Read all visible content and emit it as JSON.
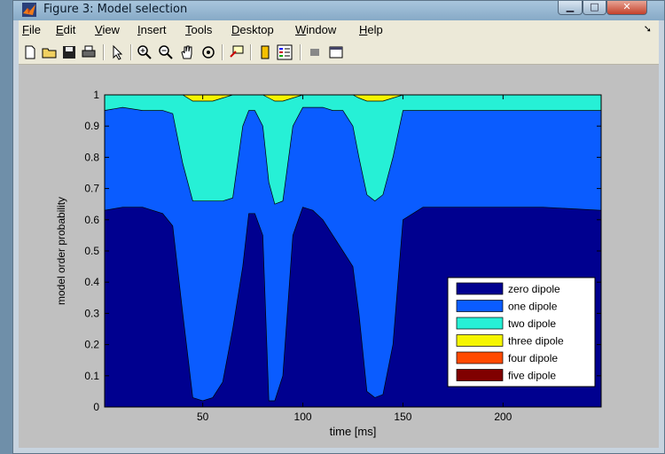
{
  "window": {
    "title": "Figure 3: Model selection"
  },
  "menu": [
    "File",
    "Edit",
    "View",
    "Insert",
    "Tools",
    "Desktop",
    "Window",
    "Help"
  ],
  "toolbar_icons": [
    "new-file-icon",
    "open-folder-icon",
    "save-icon",
    "print-icon",
    "pointer-icon",
    "zoom-in-icon",
    "zoom-out-icon",
    "pan-hand-icon",
    "rotate-3d-icon",
    "data-cursor-icon",
    "colorbar-icon",
    "legend-icon",
    "hide-plot-tools-icon",
    "show-plot-tools-icon"
  ],
  "colors": {
    "zero": "#00008f",
    "one": "#0a5cff",
    "two": "#26f0d6",
    "three": "#f5f500",
    "four": "#ff4a00",
    "five": "#800000"
  },
  "chart_data": {
    "type": "area",
    "xlabel": "time [ms]",
    "ylabel": "model order probability",
    "xlim": [
      1,
      249
    ],
    "ylim": [
      0,
      1
    ],
    "xticks": [
      50,
      100,
      150,
      200
    ],
    "yticks": [
      0,
      0.1,
      0.2,
      0.3,
      0.4,
      0.5,
      0.6,
      0.7,
      0.8,
      0.9,
      1
    ],
    "legend_position": "bottom-right",
    "x": [
      1,
      10,
      20,
      30,
      35,
      40,
      45,
      50,
      55,
      60,
      65,
      70,
      73,
      76,
      80,
      83,
      86,
      90,
      95,
      100,
      105,
      110,
      115,
      120,
      125,
      128,
      132,
      136,
      140,
      145,
      150,
      160,
      180,
      200,
      220,
      249
    ],
    "cumulative_series": [
      {
        "name": "zero dipole",
        "values": [
          0.63,
          0.64,
          0.64,
          0.62,
          0.58,
          0.3,
          0.03,
          0.02,
          0.03,
          0.08,
          0.25,
          0.45,
          0.62,
          0.62,
          0.55,
          0.02,
          0.02,
          0.1,
          0.55,
          0.64,
          0.63,
          0.6,
          0.55,
          0.5,
          0.45,
          0.3,
          0.05,
          0.03,
          0.04,
          0.2,
          0.6,
          0.64,
          0.64,
          0.64,
          0.64,
          0.63
        ]
      },
      {
        "name": "one dipole",
        "values": [
          0.95,
          0.96,
          0.95,
          0.95,
          0.94,
          0.78,
          0.66,
          0.66,
          0.66,
          0.66,
          0.67,
          0.9,
          0.95,
          0.95,
          0.9,
          0.72,
          0.65,
          0.66,
          0.9,
          0.96,
          0.96,
          0.96,
          0.95,
          0.95,
          0.9,
          0.8,
          0.68,
          0.66,
          0.68,
          0.8,
          0.95,
          0.95,
          0.95,
          0.95,
          0.95,
          0.95
        ]
      },
      {
        "name": "two dipole",
        "values": [
          1,
          1,
          1,
          1,
          1,
          1,
          0.98,
          0.98,
          0.98,
          0.99,
          1,
          1,
          1,
          1,
          1,
          0.99,
          0.98,
          0.98,
          0.99,
          1,
          1,
          1,
          1,
          1,
          1,
          0.99,
          0.98,
          0.98,
          0.98,
          0.99,
          1,
          1,
          1,
          1,
          1,
          1
        ]
      },
      {
        "name": "three dipole",
        "values": [
          1,
          1,
          1,
          1,
          1,
          1,
          1,
          1,
          1,
          1,
          1,
          1,
          1,
          1,
          1,
          1,
          1,
          1,
          1,
          1,
          1,
          1,
          1,
          1,
          1,
          1,
          1,
          1,
          1,
          1,
          1,
          1,
          1,
          1,
          1,
          1
        ]
      },
      {
        "name": "four dipole",
        "values": [
          1,
          1,
          1,
          1,
          1,
          1,
          1,
          1,
          1,
          1,
          1,
          1,
          1,
          1,
          1,
          1,
          1,
          1,
          1,
          1,
          1,
          1,
          1,
          1,
          1,
          1,
          1,
          1,
          1,
          1,
          1,
          1,
          1,
          1,
          1,
          1
        ]
      },
      {
        "name": "five dipole",
        "values": [
          1,
          1,
          1,
          1,
          1,
          1,
          1,
          1,
          1,
          1,
          1,
          1,
          1,
          1,
          1,
          1,
          1,
          1,
          1,
          1,
          1,
          1,
          1,
          1,
          1,
          1,
          1,
          1,
          1,
          1,
          1,
          1,
          1,
          1,
          1,
          1
        ]
      }
    ]
  }
}
